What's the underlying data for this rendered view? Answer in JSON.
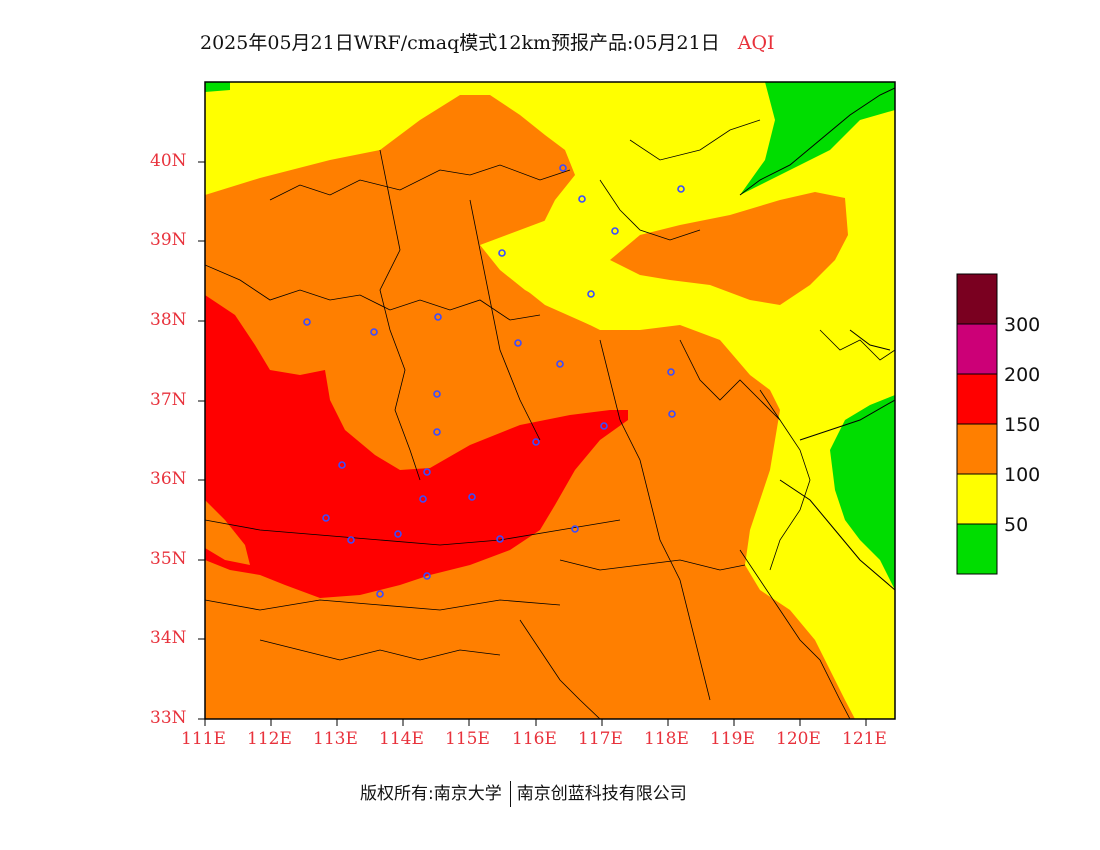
{
  "title": {
    "main": "2025年05月21日WRF/cmaq模式12km预报产品:05月21日",
    "variable": "AQI"
  },
  "axes": {
    "lat_labels": [
      "40N",
      "39N",
      "38N",
      "37N",
      "36N",
      "35N",
      "34N",
      "33N"
    ],
    "lon_labels": [
      "111E",
      "112E",
      "113E",
      "114E",
      "115E",
      "116E",
      "117E",
      "118E",
      "119E",
      "120E",
      "121E"
    ]
  },
  "legend": {
    "labels": [
      "300",
      "200",
      "150",
      "100",
      "50"
    ],
    "colors": [
      "#7a0020",
      "#cc0077",
      "#ff0000",
      "#ff7f00",
      "#ffff00",
      "#00dd00"
    ]
  },
  "footer": {
    "copyright": "版权所有:南京大学",
    "company": "南京创蓝科技有限公司"
  },
  "colors": {
    "accent_red": "#e8323c",
    "aqi_good": "#00dd00",
    "aqi_moderate": "#ffff00",
    "aqi_sensitive": "#ff7f00",
    "aqi_unhealthy": "#ff0000"
  }
}
